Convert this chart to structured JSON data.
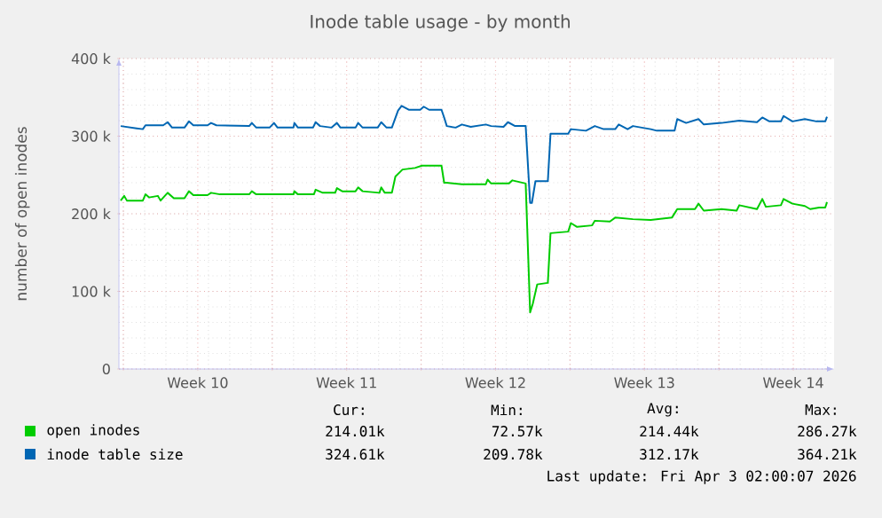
{
  "chart_data": {
    "type": "line",
    "title": "Inode table usage - by month",
    "ylabel": "number of open inodes",
    "xlim": [
      "2026-02-28T19:00",
      "2026-04-03T10:00"
    ],
    "ylim": [
      0,
      400000
    ],
    "xticks": [
      {
        "value": "2026-03-01T00:00",
        "label": null
      },
      {
        "value": "2026-03-04T12:00",
        "label": "Week 10"
      },
      {
        "value": "2026-03-08T00:00",
        "label": null
      },
      {
        "value": "2026-03-11T12:00",
        "label": "Week 11"
      },
      {
        "value": "2026-03-15T00:00",
        "label": null
      },
      {
        "value": "2026-03-18T12:00",
        "label": "Week 12"
      },
      {
        "value": "2026-03-22T00:00",
        "label": null
      },
      {
        "value": "2026-03-25T12:00",
        "label": "Week 13"
      },
      {
        "value": "2026-03-29T00:00",
        "label": null
      },
      {
        "value": "2026-04-01T12:00",
        "label": "Week 14"
      }
    ],
    "yticks": [
      0,
      {
        "value": 100000,
        "label": "100 k"
      },
      {
        "value": 200000,
        "label": "200 k"
      },
      {
        "value": 300000,
        "label": "300 k"
      },
      {
        "value": 400000,
        "label": "400 k"
      }
    ],
    "grid": true,
    "legend": "bottom",
    "series": [
      {
        "name": "open inodes",
        "color": "#00cc00",
        "x": [
          "2026-02-28T21:00",
          "2026-03-01T01:00",
          "2026-03-01T04:00",
          "2026-03-01T22:00",
          "2026-03-02T01:00",
          "2026-03-02T05:00",
          "2026-03-02T15:00",
          "2026-03-02T18:00",
          "2026-03-03T02:00",
          "2026-03-03T09:00",
          "2026-03-03T21:00",
          "2026-03-04T02:00",
          "2026-03-04T07:00",
          "2026-03-04T23:00",
          "2026-03-05T03:00",
          "2026-03-05T13:00",
          "2026-03-06T22:00",
          "2026-03-07T01:00",
          "2026-03-07T06:00",
          "2026-03-09T00:00",
          "2026-03-09T01:00",
          "2026-03-09T05:00",
          "2026-03-09T23:00",
          "2026-03-10T01:00",
          "2026-03-10T09:00",
          "2026-03-10T23:00",
          "2026-03-11T01:00",
          "2026-03-11T07:00",
          "2026-03-11T22:00",
          "2026-03-12T01:00",
          "2026-03-12T06:00",
          "2026-03-13T01:00",
          "2026-03-13T03:00",
          "2026-03-13T07:00",
          "2026-03-13T15:00",
          "2026-03-13T19:00",
          "2026-03-14T03:00",
          "2026-03-14T17:00",
          "2026-03-15T01:00",
          "2026-03-15T23:00",
          "2026-03-16T02:00",
          "2026-03-16T05:00",
          "2026-03-16T22:00",
          "2026-03-18T01:00",
          "2026-03-18T03:00",
          "2026-03-18T07:00",
          "2026-03-19T03:00",
          "2026-03-19T07:00",
          "2026-03-19T22:00",
          "2026-03-20T03:00",
          "2026-03-20T06:00",
          "2026-03-20T11:00",
          "2026-03-20T23:00",
          "2026-03-21T02:00",
          "2026-03-21T22:00",
          "2026-03-22T01:00",
          "2026-03-22T08:00",
          "2026-03-23T01:00",
          "2026-03-23T04:00",
          "2026-03-23T21:00",
          "2026-03-24T03:00",
          "2026-03-24T23:00",
          "2026-03-25T19:00",
          "2026-03-26T19:00",
          "2026-03-27T01:00",
          "2026-03-27T21:00",
          "2026-03-28T01:00",
          "2026-03-28T07:00",
          "2026-03-29T03:00",
          "2026-03-29T20:00",
          "2026-03-29T23:00",
          "2026-03-30T19:00",
          "2026-03-31T01:00",
          "2026-03-31T05:00",
          "2026-03-31T22:00",
          "2026-04-01T01:00",
          "2026-04-01T11:00",
          "2026-04-02T01:00",
          "2026-04-02T07:00",
          "2026-04-02T17:00",
          "2026-04-03T00:00",
          "2026-04-03T02:00"
        ],
        "values": [
          217000,
          223000,
          217000,
          217000,
          225000,
          221000,
          223000,
          217000,
          227000,
          220000,
          220000,
          229000,
          224000,
          224000,
          227000,
          225000,
          225000,
          229000,
          225000,
          225000,
          229000,
          225000,
          225000,
          231000,
          227000,
          227000,
          233000,
          229000,
          229000,
          234000,
          229000,
          227000,
          234000,
          227000,
          227000,
          248000,
          257000,
          259000,
          262000,
          262000,
          240000,
          240000,
          238000,
          238000,
          244000,
          239000,
          239000,
          243000,
          239000,
          73000,
          84000,
          109000,
          111000,
          175000,
          177000,
          188000,
          183000,
          185000,
          191000,
          190000,
          195000,
          193000,
          192000,
          195000,
          206000,
          206000,
          213000,
          204000,
          206000,
          204000,
          211000,
          206000,
          219000,
          209000,
          211000,
          219000,
          213000,
          210000,
          206000,
          208000,
          208000,
          215000
        ]
      },
      {
        "name": "inode table size",
        "color": "#0066b3",
        "x": [
          "2026-02-28T21:00",
          "2026-03-01T15:00",
          "2026-03-01T22:00",
          "2026-03-02T01:00",
          "2026-03-02T21:00",
          "2026-03-03T02:00",
          "2026-03-03T07:00",
          "2026-03-03T21:00",
          "2026-03-04T02:00",
          "2026-03-04T07:00",
          "2026-03-04T23:00",
          "2026-03-05T03:00",
          "2026-03-05T09:00",
          "2026-03-06T22:00",
          "2026-03-07T01:00",
          "2026-03-07T06:00",
          "2026-03-07T21:00",
          "2026-03-08T02:00",
          "2026-03-08T06:00",
          "2026-03-09T00:00",
          "2026-03-09T01:00",
          "2026-03-09T05:00",
          "2026-03-09T22:00",
          "2026-03-10T01:00",
          "2026-03-10T06:00",
          "2026-03-10T19:00",
          "2026-03-11T01:00",
          "2026-03-11T05:00",
          "2026-03-11T22:00",
          "2026-03-12T01:00",
          "2026-03-12T06:00",
          "2026-03-12T23:00",
          "2026-03-13T03:00",
          "2026-03-13T09:00",
          "2026-03-13T15:00",
          "2026-03-13T22:00",
          "2026-03-14T02:00",
          "2026-03-14T10:00",
          "2026-03-14T23:00",
          "2026-03-15T03:00",
          "2026-03-15T09:00",
          "2026-03-15T23:00",
          "2026-03-16T02:00",
          "2026-03-16T05:00",
          "2026-03-16T15:00",
          "2026-03-16T22:00",
          "2026-03-17T08:00",
          "2026-03-18T01:00",
          "2026-03-18T07:00",
          "2026-03-18T21:00",
          "2026-03-19T02:00",
          "2026-03-19T10:00",
          "2026-03-19T22:00",
          "2026-03-20T03:00",
          "2026-03-20T05:00",
          "2026-03-20T09:00",
          "2026-03-20T23:00",
          "2026-03-21T02:00",
          "2026-03-21T22:00",
          "2026-03-22T01:00",
          "2026-03-22T18:00",
          "2026-03-23T04:00",
          "2026-03-23T14:00",
          "2026-03-24T03:00",
          "2026-03-24T07:00",
          "2026-03-24T17:00",
          "2026-03-24T23:00",
          "2026-03-25T19:00",
          "2026-03-26T02:00",
          "2026-03-26T22:00",
          "2026-03-27T01:00",
          "2026-03-27T11:00",
          "2026-03-28T01:00",
          "2026-03-28T07:00",
          "2026-03-29T03:00",
          "2026-03-29T23:00",
          "2026-03-30T19:00",
          "2026-03-31T01:00",
          "2026-03-31T09:00",
          "2026-03-31T22:00",
          "2026-04-01T01:00",
          "2026-04-01T11:00",
          "2026-04-02T01:00",
          "2026-04-02T14:00",
          "2026-04-03T00:00",
          "2026-04-03T02:00"
        ],
        "values": [
          313000,
          310000,
          309000,
          314000,
          314000,
          318000,
          311000,
          311000,
          319000,
          314000,
          314000,
          317000,
          314000,
          313000,
          317000,
          311000,
          311000,
          317000,
          311000,
          311000,
          317000,
          311000,
          311000,
          318000,
          313000,
          311000,
          317000,
          311000,
          311000,
          317000,
          311000,
          311000,
          318000,
          311000,
          311000,
          333000,
          339000,
          334000,
          334000,
          338000,
          334000,
          334000,
          324000,
          313000,
          311000,
          315000,
          312000,
          315000,
          313000,
          312000,
          318000,
          313000,
          313000,
          214000,
          214000,
          242000,
          242000,
          303000,
          303000,
          309000,
          307000,
          313000,
          309000,
          309000,
          315000,
          309000,
          313000,
          309000,
          307000,
          307000,
          322000,
          317000,
          322000,
          315000,
          317000,
          320000,
          318000,
          324000,
          319000,
          319000,
          326000,
          319000,
          322000,
          319000,
          319000,
          325000
        ]
      }
    ],
    "annotations": [
      "Cur:",
      "Min:",
      "Avg:",
      "Max:",
      "214.01k",
      "72.57k",
      "214.44k",
      "286.27k",
      "324.61k",
      "209.78k",
      "312.17k",
      "364.21k",
      "Last update: Fri Apr 3 02:00:07 2026"
    ]
  }
}
